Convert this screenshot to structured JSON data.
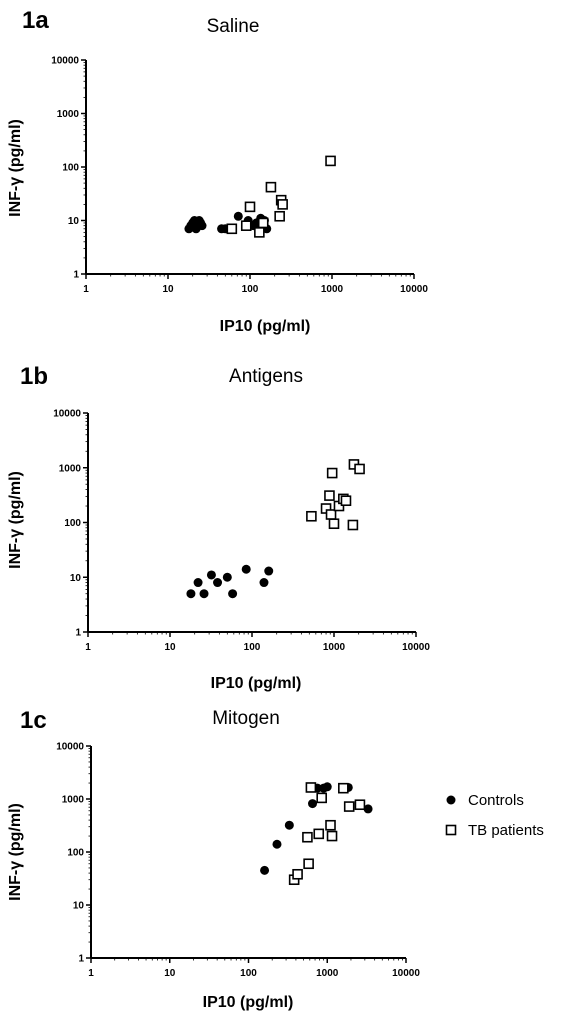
{
  "chart_data": [
    {
      "type": "scatter",
      "panel_label": "1a",
      "title": "Saline",
      "xlabel": "IP10 (pg/ml)",
      "ylabel": "INF-γ (pg/ml)",
      "x_scale": "log",
      "y_scale": "log",
      "xlim": [
        1,
        10000
      ],
      "ylim": [
        1,
        10000
      ],
      "x_ticks": [
        "1",
        "10",
        "100",
        "1000",
        "10000"
      ],
      "y_ticks": [
        "1",
        "10",
        "100",
        "1000",
        "10000"
      ],
      "series": [
        {
          "name": "Controls",
          "marker": "filled-circle",
          "points": [
            {
              "x": 18,
              "y": 7
            },
            {
              "x": 19,
              "y": 8
            },
            {
              "x": 20,
              "y": 9
            },
            {
              "x": 21,
              "y": 10
            },
            {
              "x": 22,
              "y": 7
            },
            {
              "x": 23,
              "y": 8
            },
            {
              "x": 24,
              "y": 10
            },
            {
              "x": 25,
              "y": 9
            },
            {
              "x": 26,
              "y": 8
            },
            {
              "x": 45,
              "y": 7
            },
            {
              "x": 50,
              "y": 7
            },
            {
              "x": 72,
              "y": 12
            },
            {
              "x": 95,
              "y": 10
            },
            {
              "x": 110,
              "y": 8
            },
            {
              "x": 120,
              "y": 9
            },
            {
              "x": 135,
              "y": 11
            },
            {
              "x": 150,
              "y": 10
            },
            {
              "x": 160,
              "y": 7
            }
          ]
        },
        {
          "name": "TB patients",
          "marker": "open-square",
          "points": [
            {
              "x": 60,
              "y": 7
            },
            {
              "x": 90,
              "y": 8
            },
            {
              "x": 100,
              "y": 18
            },
            {
              "x": 130,
              "y": 6
            },
            {
              "x": 145,
              "y": 9
            },
            {
              "x": 180,
              "y": 42
            },
            {
              "x": 230,
              "y": 12
            },
            {
              "x": 240,
              "y": 24
            },
            {
              "x": 250,
              "y": 20
            },
            {
              "x": 960,
              "y": 130
            }
          ]
        }
      ]
    },
    {
      "type": "scatter",
      "panel_label": "1b",
      "title": "Antigens",
      "xlabel": "IP10 (pg/ml)",
      "ylabel": "INF-γ (pg/ml)",
      "x_scale": "log",
      "y_scale": "log",
      "xlim": [
        1,
        10000
      ],
      "ylim": [
        1,
        10000
      ],
      "x_ticks": [
        "1",
        "10",
        "100",
        "1000",
        "10000"
      ],
      "y_ticks": [
        "1",
        "10",
        "100",
        "1000",
        "10000"
      ],
      "series": [
        {
          "name": "Controls",
          "marker": "filled-circle",
          "points": [
            {
              "x": 18,
              "y": 5
            },
            {
              "x": 22,
              "y": 8
            },
            {
              "x": 26,
              "y": 5
            },
            {
              "x": 32,
              "y": 11
            },
            {
              "x": 38,
              "y": 8
            },
            {
              "x": 50,
              "y": 10
            },
            {
              "x": 58,
              "y": 5
            },
            {
              "x": 85,
              "y": 14
            },
            {
              "x": 140,
              "y": 8
            },
            {
              "x": 160,
              "y": 13
            }
          ]
        },
        {
          "name": "TB patients",
          "marker": "open-square",
          "points": [
            {
              "x": 530,
              "y": 130
            },
            {
              "x": 800,
              "y": 180
            },
            {
              "x": 880,
              "y": 310
            },
            {
              "x": 920,
              "y": 140
            },
            {
              "x": 950,
              "y": 800
            },
            {
              "x": 1000,
              "y": 95
            },
            {
              "x": 1150,
              "y": 200
            },
            {
              "x": 1300,
              "y": 270
            },
            {
              "x": 1400,
              "y": 250
            },
            {
              "x": 1700,
              "y": 90
            },
            {
              "x": 1750,
              "y": 1150
            },
            {
              "x": 2050,
              "y": 950
            }
          ]
        }
      ]
    },
    {
      "type": "scatter",
      "panel_label": "1c",
      "title": "Mitogen",
      "xlabel": "IP10 (pg/ml)",
      "ylabel": "INF-γ (pg/ml)",
      "x_scale": "log",
      "y_scale": "log",
      "xlim": [
        1,
        10000
      ],
      "ylim": [
        1,
        10000
      ],
      "x_ticks": [
        "1",
        "10",
        "100",
        "1000",
        "10000"
      ],
      "y_ticks": [
        "1",
        "10",
        "100",
        "1000",
        "10000"
      ],
      "legend": {
        "position": "right",
        "entries": [
          {
            "label": "Controls",
            "marker": "filled-circle"
          },
          {
            "label": "TB patients",
            "marker": "open-square"
          }
        ]
      },
      "series": [
        {
          "name": "Controls",
          "marker": "filled-circle",
          "points": [
            {
              "x": 160,
              "y": 45
            },
            {
              "x": 230,
              "y": 140
            },
            {
              "x": 330,
              "y": 320
            },
            {
              "x": 650,
              "y": 820
            },
            {
              "x": 750,
              "y": 1600
            },
            {
              "x": 900,
              "y": 1600
            },
            {
              "x": 1000,
              "y": 1700
            },
            {
              "x": 1850,
              "y": 1650
            },
            {
              "x": 3300,
              "y": 650
            }
          ]
        },
        {
          "name": "TB patients",
          "marker": "open-square",
          "points": [
            {
              "x": 380,
              "y": 30
            },
            {
              "x": 420,
              "y": 38
            },
            {
              "x": 560,
              "y": 190
            },
            {
              "x": 580,
              "y": 60
            },
            {
              "x": 620,
              "y": 1650
            },
            {
              "x": 780,
              "y": 220
            },
            {
              "x": 850,
              "y": 1050
            },
            {
              "x": 1100,
              "y": 320
            },
            {
              "x": 1150,
              "y": 200
            },
            {
              "x": 1600,
              "y": 1600
            },
            {
              "x": 1900,
              "y": 720
            },
            {
              "x": 2600,
              "y": 780
            }
          ]
        }
      ]
    }
  ]
}
